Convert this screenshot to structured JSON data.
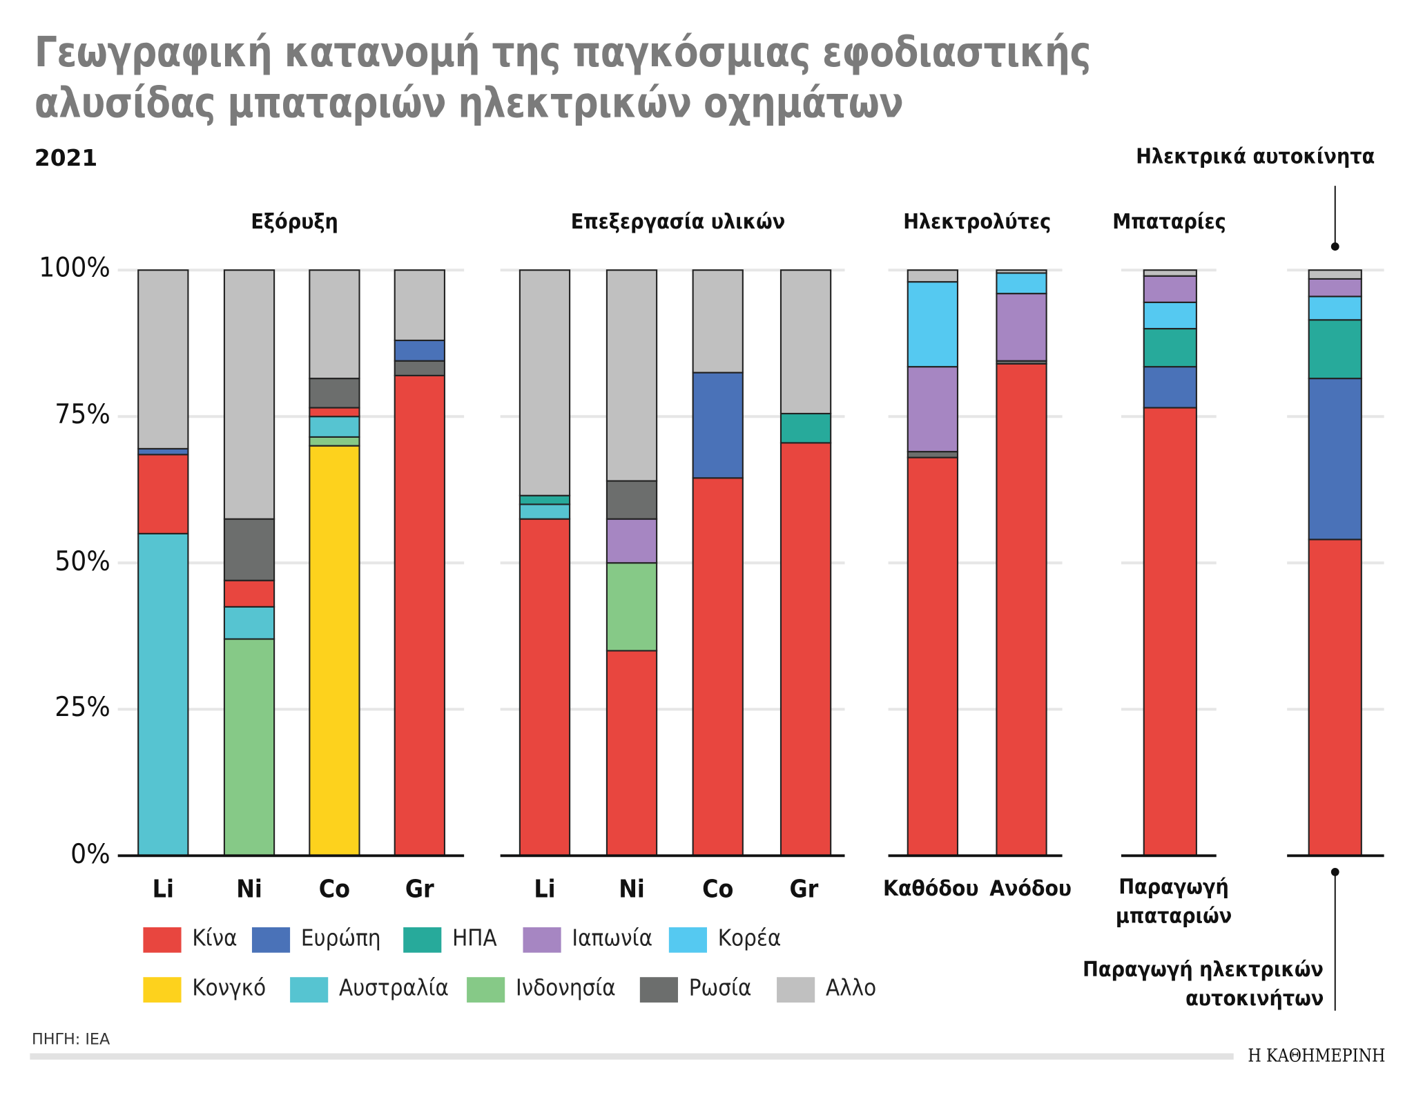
{
  "title_line1": "Γεωγραφική κατανομή της παγκόσμιας εφοδιαστικής",
  "title_line2": "αλυσίδας μπαταριών ηλεκτρικών οχημάτων",
  "year": "2021",
  "source": "ΠΗΓΗ: IEA",
  "logo": "Η ΚΑΘΗΜΕΡΙΝΗ",
  "annotations": {
    "ev_top": "Ηλεκτρικά αυτοκίνητα",
    "ev_bottom_1": "Παραγωγή ηλεκτρικών",
    "ev_bottom_2": "αυτοκινήτων",
    "battery_prod_1": "Παραγωγή",
    "battery_prod_2": "μπαταριών"
  },
  "chart_data": {
    "type": "bar",
    "stacked": true,
    "ylim": [
      0,
      100
    ],
    "yticks": [
      "0%",
      "25%",
      "50%",
      "75%",
      "100%"
    ],
    "grid": true,
    "legend_placement": "bottom",
    "groups": [
      {
        "label": "Εξόρυξη",
        "categories": [
          "Li",
          "Ni",
          "Co",
          "Gr"
        ]
      },
      {
        "label": "Επεξεργασία υλικών",
        "categories": [
          "Li",
          "Ni",
          "Co",
          "Gr"
        ]
      },
      {
        "label": "Ηλεκτρολύτες",
        "categories": [
          "Καθόδου",
          "Ανόδου"
        ]
      },
      {
        "label": "Μπαταρίες",
        "categories": [
          ""
        ]
      },
      {
        "label": "",
        "categories": [
          ""
        ]
      }
    ],
    "series": [
      {
        "name": "Κίνα",
        "color": "#e8463f"
      },
      {
        "name": "Ευρώπη",
        "color": "#4a72b8"
      },
      {
        "name": "ΗΠΑ",
        "color": "#27aa9b"
      },
      {
        "name": "Ιαπωνία",
        "color": "#a686c2"
      },
      {
        "name": "Κορέα",
        "color": "#55c9f1"
      },
      {
        "name": "Κονγκό",
        "color": "#fdd21d"
      },
      {
        "name": "Αυστραλία",
        "color": "#56c4d1"
      },
      {
        "name": "Ινδονησία",
        "color": "#86c987"
      },
      {
        "name": "Ρωσία",
        "color": "#6c6e6d"
      },
      {
        "name": "Αλλο",
        "color": "#c0c0c0"
      }
    ],
    "bars": [
      {
        "group": 0,
        "label": "Li",
        "stack": [
          [
            "Αυστραλία",
            55
          ],
          [
            "Κίνα",
            13.5
          ],
          [
            "Ευρώπη",
            1
          ],
          [
            "Αλλο",
            30.5
          ]
        ]
      },
      {
        "group": 0,
        "label": "Ni",
        "stack": [
          [
            "Ινδονησία",
            37
          ],
          [
            "Αυστραλία",
            5.5
          ],
          [
            "Κίνα",
            4.5
          ],
          [
            "Ρωσία",
            10.5
          ],
          [
            "Αλλο",
            42.5
          ]
        ]
      },
      {
        "group": 0,
        "label": "Co",
        "stack": [
          [
            "Κονγκό",
            70
          ],
          [
            "Ινδονησία",
            1.5
          ],
          [
            "Αυστραλία",
            3.5
          ],
          [
            "Κίνα",
            1.5
          ],
          [
            "Ρωσία",
            5
          ],
          [
            "Αλλο",
            18.5
          ]
        ]
      },
      {
        "group": 0,
        "label": "Gr",
        "stack": [
          [
            "Κίνα",
            82
          ],
          [
            "Ρωσία",
            2.5
          ],
          [
            "Ευρώπη",
            3.5
          ],
          [
            "Αλλο",
            12
          ]
        ]
      },
      {
        "group": 1,
        "label": "Li",
        "stack": [
          [
            "Κίνα",
            57.5
          ],
          [
            "Αυστραλία",
            2.5
          ],
          [
            "ΗΠΑ",
            1.5
          ],
          [
            "Αλλο",
            38.5
          ]
        ]
      },
      {
        "group": 1,
        "label": "Ni",
        "stack": [
          [
            "Κίνα",
            35
          ],
          [
            "Ινδονησία",
            15
          ],
          [
            "Ιαπωνία",
            7.5
          ],
          [
            "Ρωσία",
            6.5
          ],
          [
            "Αλλο",
            36
          ]
        ]
      },
      {
        "group": 1,
        "label": "Co",
        "stack": [
          [
            "Κίνα",
            64.5
          ],
          [
            "Ευρώπη",
            18
          ],
          [
            "Αλλο",
            17.5
          ]
        ]
      },
      {
        "group": 1,
        "label": "Gr",
        "stack": [
          [
            "Κίνα",
            70.5
          ],
          [
            "ΗΠΑ",
            5
          ],
          [
            "Αλλο",
            24.5
          ]
        ]
      },
      {
        "group": 2,
        "label": "Καθόδου",
        "stack": [
          [
            "Κίνα",
            68
          ],
          [
            "Ρωσία",
            1
          ],
          [
            "Ιαπωνία",
            14.5
          ],
          [
            "Κορέα",
            14.5
          ],
          [
            "Αλλο",
            2
          ]
        ]
      },
      {
        "group": 2,
        "label": "Ανόδου",
        "stack": [
          [
            "Κίνα",
            84
          ],
          [
            "Ρωσία",
            0.5
          ],
          [
            "Ιαπωνία",
            11.5
          ],
          [
            "Κορέα",
            3.5
          ],
          [
            "Αλλο",
            0.5
          ]
        ]
      },
      {
        "group": 3,
        "label": "",
        "stack": [
          [
            "Κίνα",
            76.5
          ],
          [
            "Ευρώπη",
            7
          ],
          [
            "ΗΠΑ",
            6.5
          ],
          [
            "Κορέα",
            4.5
          ],
          [
            "Ιαπωνία",
            4.5
          ],
          [
            "Αλλο",
            1
          ]
        ]
      },
      {
        "group": 4,
        "label": "",
        "stack": [
          [
            "Κίνα",
            54
          ],
          [
            "Ευρώπη",
            27.5
          ],
          [
            "ΗΠΑ",
            10
          ],
          [
            "Κορέα",
            4
          ],
          [
            "Ιαπωνία",
            3
          ],
          [
            "Αλλο",
            1.5
          ]
        ]
      }
    ]
  }
}
